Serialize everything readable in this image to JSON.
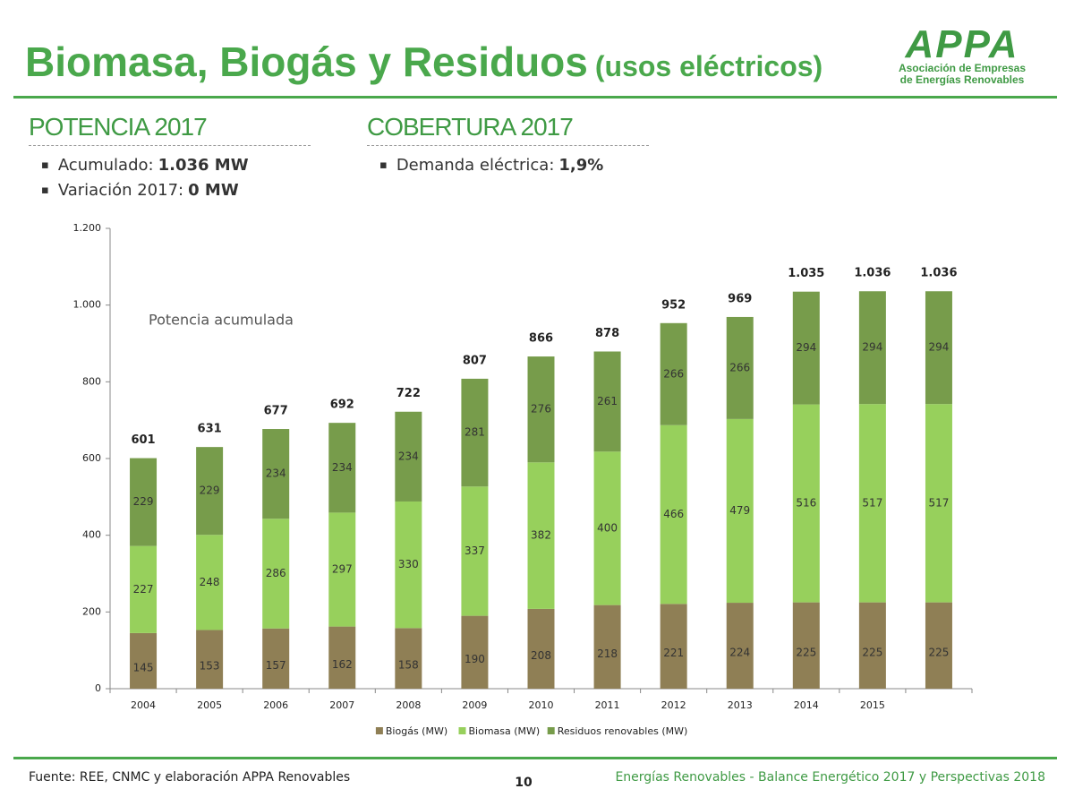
{
  "header": {
    "title": "Biomasa, Biogás y Residuos",
    "subtitle": "(usos eléctricos)",
    "logo": {
      "mark": "APPA",
      "line1": "Asociación de Empresas",
      "line2": "de Energías Renovables"
    }
  },
  "sections": [
    {
      "title": "POTENCIA 2017",
      "bullets": [
        {
          "label": "Acumulado:",
          "value": "1.036 MW"
        },
        {
          "label": "Variación 2017:",
          "value": "0 MW"
        }
      ]
    },
    {
      "title": "COBERTURA 2017",
      "bullets": [
        {
          "label": "Demanda eléctrica:",
          "value": "1,9%"
        }
      ]
    }
  ],
  "chart_data": {
    "type": "stacked_bar",
    "annotation": "Potencia acumulada",
    "categories": [
      "2004",
      "2005",
      "2006",
      "2007",
      "2008",
      "2009",
      "2010",
      "2011",
      "2012",
      "2013",
      "2014",
      "2015",
      null
    ],
    "series": [
      {
        "name": "Biogás (MW)",
        "color": "#8f7f55",
        "values": [
          145,
          153,
          157,
          162,
          158,
          190,
          208,
          218,
          221,
          224,
          225,
          225,
          225
        ]
      },
      {
        "name": "Biomasa (MW)",
        "color": "#97d05c",
        "values": [
          227,
          248,
          286,
          297,
          330,
          337,
          382,
          400,
          466,
          479,
          516,
          517,
          517
        ]
      },
      {
        "name": "Residuos renovables (MW)",
        "color": "#779c4b",
        "values": [
          229,
          229,
          234,
          234,
          234,
          281,
          276,
          261,
          266,
          266,
          294,
          294,
          294
        ]
      }
    ],
    "totals": {
      "values": [
        601,
        631,
        677,
        692,
        722,
        807,
        866,
        878,
        952,
        969,
        1035,
        1036,
        1036
      ],
      "value_labels": [
        "601",
        "631",
        "677",
        "692",
        "722",
        "807",
        "866",
        "878",
        "952",
        "969",
        "1.035",
        "1.036",
        "1.036"
      ]
    },
    "ylim": [
      0,
      1200
    ],
    "yticks": [
      0,
      200,
      400,
      600,
      800,
      {
        "value": 1000,
        "label": "1.000"
      },
      {
        "value": 1200,
        "label": "1.200"
      }
    ]
  },
  "footer": {
    "source": "Fuente: REE, CNMC y elaboración APPA Renovables",
    "page": "10",
    "right": "Energías Renovables - Balance Energético 2017 y Perspectivas 2018"
  }
}
